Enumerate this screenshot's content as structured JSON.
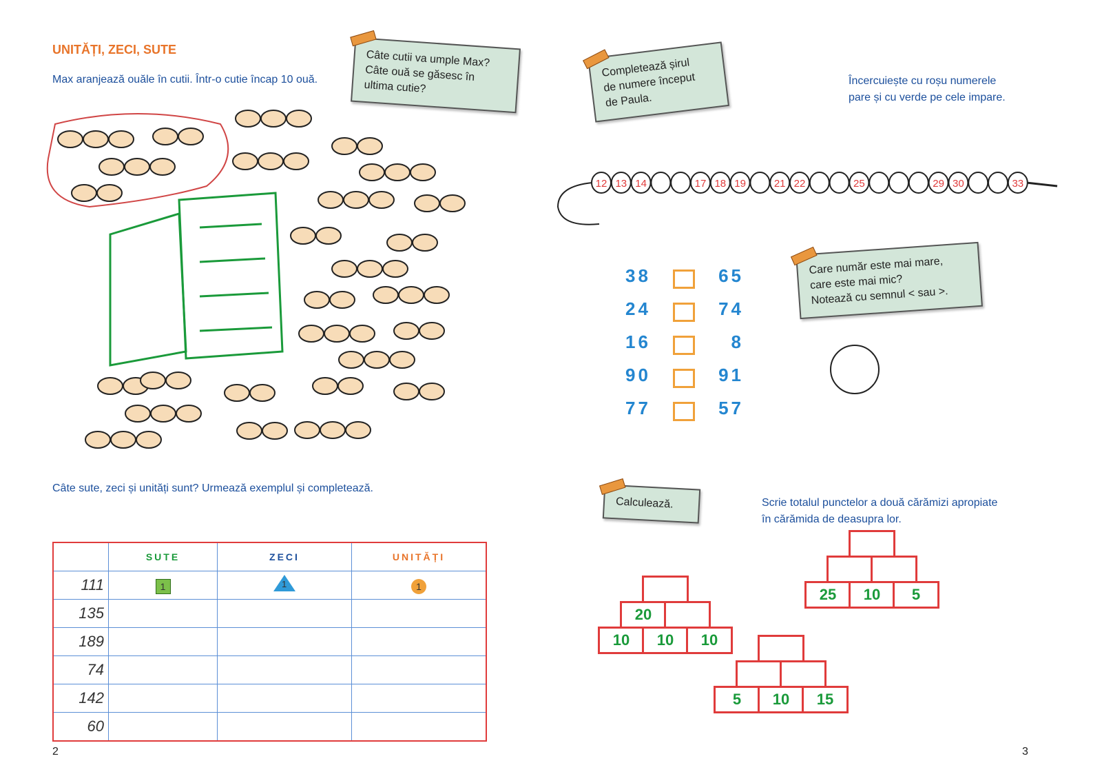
{
  "left": {
    "title": "UNITĂȚI, ZECI, SUTE",
    "instruction": "Max aranjează ouăle în cutii. Într-o cutie încap 10 ouă.",
    "note": [
      "Câte cutii va umple Max?",
      "Câte ouă se găsesc în",
      "ultima cutie?"
    ],
    "table_instruction": "Câte sute, zeci și unități sunt? Urmează exemplul și completează.",
    "table": {
      "headers": [
        "SUTE",
        "ZECI",
        "UNITĂȚI"
      ],
      "header_colors": [
        "#1a9a3a",
        "#1c4f9c",
        "#e8742a"
      ],
      "rows": [
        "111",
        "135",
        "189",
        "74",
        "142",
        "60"
      ],
      "example": {
        "sute": "1",
        "zeci": "1",
        "unitati": "1"
      }
    },
    "page_number": "2"
  },
  "right": {
    "bead_note": [
      "Completează șirul",
      "de numere început",
      "de Paula."
    ],
    "bead_instruction": [
      "Încercuiește cu roșu numerele",
      "pare și cu verde pe cele impare."
    ],
    "beads": [
      "12",
      "13",
      "14",
      "",
      "",
      "17",
      "18",
      "19",
      "",
      "21",
      "22",
      "",
      "",
      "25",
      "",
      "",
      "",
      "29",
      "30",
      "",
      "",
      "33"
    ],
    "compare_note": [
      "Care număr este mai mare,",
      "care este mai mic?",
      "Notează cu semnul < sau >."
    ],
    "comparisons": [
      [
        "38",
        "65"
      ],
      [
        "24",
        "74"
      ],
      [
        "16",
        "8"
      ],
      [
        "90",
        "91"
      ],
      [
        "77",
        "57"
      ]
    ],
    "calc_note": "Calculează.",
    "pyramid_instruction": [
      "Scrie totalul punctelor a două cărămizi apropiate",
      "în cărămida de deasupra lor."
    ],
    "pyramids": [
      {
        "top": "",
        "middle": [
          "20",
          ""
        ],
        "bottom": [
          "10",
          "10",
          "10"
        ]
      },
      {
        "top": "",
        "middle": [
          "",
          ""
        ],
        "bottom": [
          "25",
          "10",
          "5"
        ]
      },
      {
        "top": "",
        "middle": [
          "",
          ""
        ],
        "bottom": [
          "5",
          "10",
          "15"
        ]
      }
    ],
    "page_number": "3"
  }
}
